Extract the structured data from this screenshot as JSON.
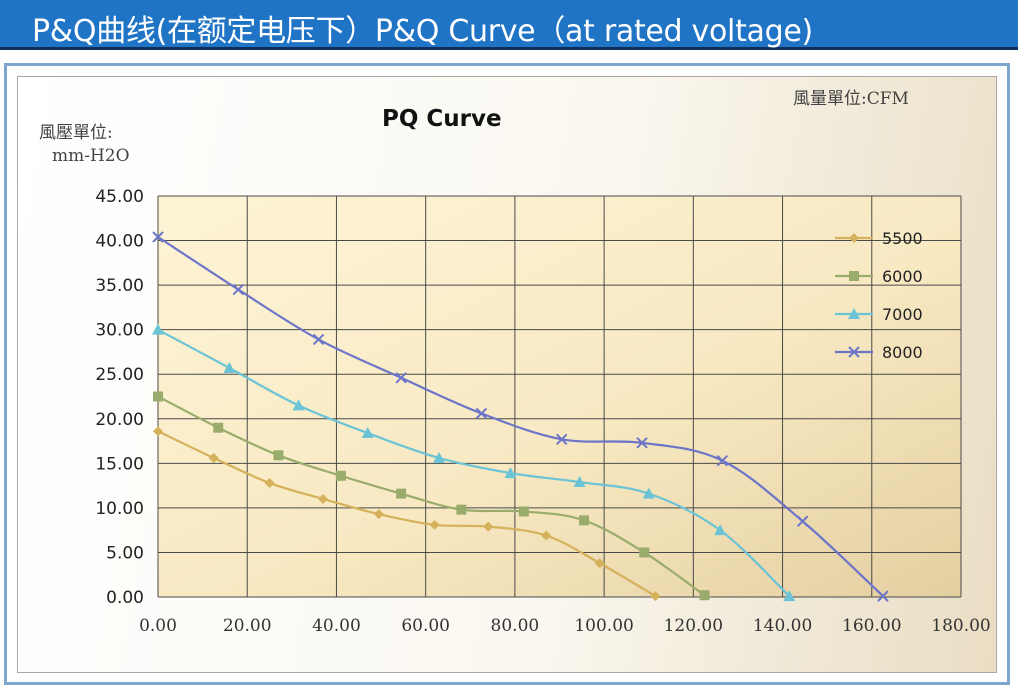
{
  "banner": {
    "title": "P&Q曲线(在额定电压下）P&Q Curve（at rated voltage)"
  },
  "labels": {
    "unit_flow": "風量單位:CFM",
    "unit_pressure": "風壓單位:",
    "unit_pressure_2": "mm-H2O"
  },
  "colors": {
    "banner_bg": "#1f74c6",
    "s5500": "#d4b15a",
    "s6000": "#9aac6c",
    "s7000": "#6bc4d6",
    "s8000": "#6d75c9"
  },
  "chart_data": {
    "type": "line",
    "title": "PQ Curve",
    "xlabel": "風量單位:CFM",
    "ylabel": "風壓單位: mm-H2O",
    "xlim": [
      0,
      180
    ],
    "ylim": [
      0,
      45
    ],
    "x_ticks": [
      "0.00",
      "20.00",
      "40.00",
      "60.00",
      "80.00",
      "100.00",
      "120.00",
      "140.00",
      "160.00",
      "180.00"
    ],
    "y_ticks": [
      "0.00",
      "5.00",
      "10.00",
      "15.00",
      "20.00",
      "25.00",
      "30.00",
      "35.00",
      "40.00",
      "45.00"
    ],
    "grid": true,
    "legend": "right",
    "series": [
      {
        "name": "5500",
        "marker": "diamond",
        "color": "#d4b15a",
        "points": [
          [
            0,
            18.6
          ],
          [
            12.5,
            15.6
          ],
          [
            25,
            12.8
          ],
          [
            37,
            11.0
          ],
          [
            49.5,
            9.3
          ],
          [
            62,
            8.1
          ],
          [
            74,
            7.9
          ],
          [
            87,
            6.9
          ],
          [
            99,
            3.8
          ],
          [
            111.5,
            0.1
          ]
        ]
      },
      {
        "name": "6000",
        "marker": "square",
        "color": "#9aac6c",
        "points": [
          [
            0,
            22.5
          ],
          [
            13.5,
            19.0
          ],
          [
            27,
            15.9
          ],
          [
            41,
            13.6
          ],
          [
            54.5,
            11.6
          ],
          [
            68,
            9.8
          ],
          [
            82,
            9.6
          ],
          [
            95.5,
            8.6
          ],
          [
            109,
            5.0
          ],
          [
            122.5,
            0.2
          ]
        ]
      },
      {
        "name": "7000",
        "marker": "triangle",
        "color": "#6bc4d6",
        "points": [
          [
            0,
            30.0
          ],
          [
            16,
            25.7
          ],
          [
            31.5,
            21.5
          ],
          [
            47,
            18.4
          ],
          [
            63,
            15.6
          ],
          [
            79,
            13.9
          ],
          [
            94.5,
            12.9
          ],
          [
            110,
            11.6
          ],
          [
            126,
            7.5
          ],
          [
            141.5,
            0.1
          ]
        ]
      },
      {
        "name": "8000",
        "marker": "x",
        "color": "#6d75c9",
        "points": [
          [
            0,
            40.4
          ],
          [
            18,
            34.5
          ],
          [
            36,
            28.9
          ],
          [
            54.5,
            24.6
          ],
          [
            72.5,
            20.6
          ],
          [
            90.5,
            17.7
          ],
          [
            108.5,
            17.3
          ],
          [
            126.5,
            15.3
          ],
          [
            144.5,
            8.5
          ],
          [
            162.5,
            0.1
          ]
        ]
      }
    ]
  }
}
